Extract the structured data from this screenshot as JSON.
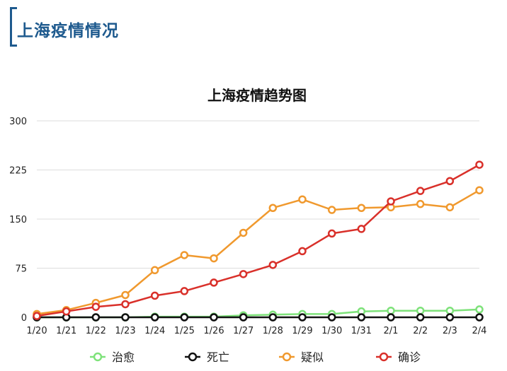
{
  "header": {
    "title": "上海疫情情况"
  },
  "chart_data": {
    "type": "line",
    "title": "上海疫情趋势图",
    "xlabel": "",
    "ylabel": "",
    "categories": [
      "1/20",
      "1/21",
      "1/22",
      "1/23",
      "1/24",
      "1/25",
      "1/26",
      "1/27",
      "1/28",
      "1/29",
      "1/30",
      "1/31",
      "2/1",
      "2/2",
      "2/3",
      "2/4"
    ],
    "ylim": [
      0,
      300
    ],
    "yticks": [
      0,
      75,
      150,
      225,
      300
    ],
    "grid": true,
    "legend_position": "bottom",
    "series": [
      {
        "name": "治愈",
        "color": "#7ee27a",
        "values": [
          0,
          0,
          0,
          0,
          1,
          1,
          1,
          3,
          4,
          5,
          5,
          9,
          10,
          10,
          10,
          12
        ]
      },
      {
        "name": "死亡",
        "color": "#111111",
        "values": [
          0,
          0,
          0,
          0,
          0,
          0,
          0,
          0,
          0,
          0,
          0,
          0,
          0,
          0,
          0,
          0
        ]
      },
      {
        "name": "疑似",
        "color": "#f0992e",
        "values": [
          5,
          11,
          22,
          34,
          72,
          95,
          90,
          129,
          167,
          180,
          164,
          167,
          168,
          173,
          168,
          194
        ]
      },
      {
        "name": "确诊",
        "color": "#d9302a",
        "values": [
          2,
          9,
          16,
          20,
          33,
          40,
          53,
          66,
          80,
          101,
          128,
          135,
          177,
          193,
          208,
          233
        ]
      }
    ]
  }
}
